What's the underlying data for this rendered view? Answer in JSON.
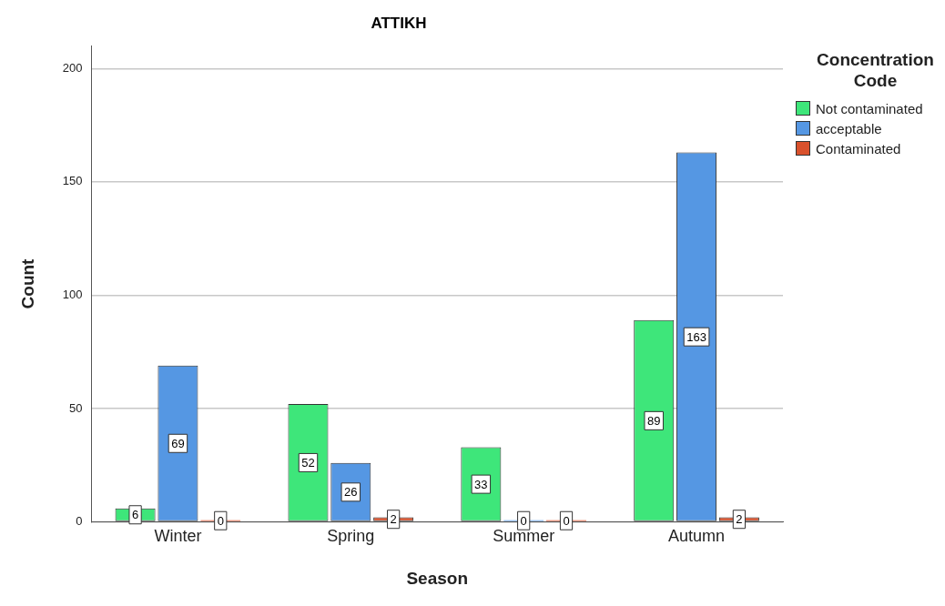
{
  "chart_data": {
    "type": "bar",
    "title": "ATTIKH",
    "xlabel": "Season",
    "ylabel": "Count",
    "legend_title": "Concentration Code",
    "categories": [
      "Winter",
      "Spring",
      "Summer",
      "Autumn"
    ],
    "series": [
      {
        "name": "Not contaminated",
        "color": "#3ee67a",
        "values": [
          6,
          52,
          33,
          89
        ]
      },
      {
        "name": "acceptable",
        "color": "#5597e3",
        "values": [
          69,
          26,
          0,
          163
        ]
      },
      {
        "name": "Contaminated",
        "color": "#d9512c",
        "values": [
          0,
          2,
          0,
          2
        ]
      }
    ],
    "ylim": [
      0,
      210
    ],
    "yticks": [
      0,
      50,
      100,
      150,
      200
    ],
    "grid": "y",
    "legend": "top right",
    "data_labels": true
  }
}
